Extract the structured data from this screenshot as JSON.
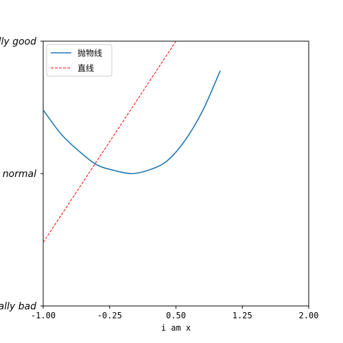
{
  "chart_data": {
    "type": "line",
    "title": "",
    "xlabel": "i am x",
    "ylabel": "",
    "xlim": [
      -1.0,
      2.0
    ],
    "ylim": [
      -2,
      3
    ],
    "x_ticks": [
      -1.0,
      -0.25,
      0.5,
      1.25,
      2.0
    ],
    "x_tick_labels": [
      "-1.00",
      "-0.25",
      "0.50",
      "1.25",
      "2.00"
    ],
    "y_ticks": [
      -2,
      0.5,
      3
    ],
    "y_tick_labels": [
      "really bad",
      "normal",
      "really good"
    ],
    "grid": false,
    "legend_position": "top-left",
    "series": [
      {
        "name": "抛物线",
        "color": "#1f77b4",
        "style": "solid",
        "x": [
          -1.0,
          -0.8,
          -0.6,
          -0.4,
          -0.2,
          0.0,
          0.2,
          0.4,
          0.6,
          0.8,
          1.0
        ],
        "y": [
          1.7,
          1.25,
          0.93,
          0.67,
          0.56,
          0.5,
          0.57,
          0.74,
          1.12,
          1.68,
          2.44
        ]
      },
      {
        "name": "直线",
        "color": "#ff0000",
        "style": "dashed",
        "x": [
          -1.0,
          0.5
        ],
        "y": [
          -0.8,
          3.0
        ]
      }
    ]
  }
}
